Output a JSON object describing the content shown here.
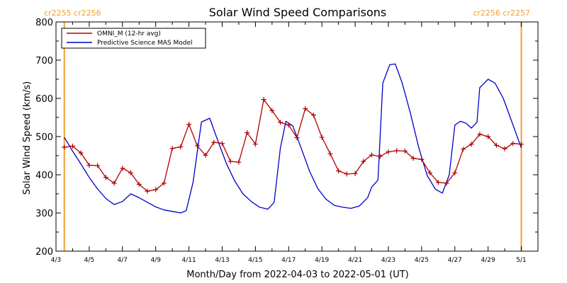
{
  "chart_data": {
    "type": "line",
    "title": "Solar Wind Speed Comparisons",
    "xlabel": "Month/Day from 2022-04-03 to 2022-05-01 (UT)",
    "ylabel": "Solar Wind Speed (km/s)",
    "ylim": [
      200,
      800
    ],
    "xlim": [
      "2022-04-03T00:00",
      "2022-05-02T00:00"
    ],
    "y_ticks": [
      200,
      300,
      400,
      500,
      600,
      700,
      800
    ],
    "x_ticks": [
      {
        "date": "2022-04-03",
        "label": "4/3"
      },
      {
        "date": "2022-04-05",
        "label": "4/5"
      },
      {
        "date": "2022-04-07",
        "label": "4/7"
      },
      {
        "date": "2022-04-09",
        "label": "4/9"
      },
      {
        "date": "2022-04-11",
        "label": "4/11"
      },
      {
        "date": "2022-04-13",
        "label": "4/13"
      },
      {
        "date": "2022-04-15",
        "label": "4/15"
      },
      {
        "date": "2022-04-17",
        "label": "4/17"
      },
      {
        "date": "2022-04-19",
        "label": "4/19"
      },
      {
        "date": "2022-04-21",
        "label": "4/21"
      },
      {
        "date": "2022-04-23",
        "label": "4/23"
      },
      {
        "date": "2022-04-25",
        "label": "4/25"
      },
      {
        "date": "2022-04-27",
        "label": "4/27"
      },
      {
        "date": "2022-04-29",
        "label": "4/29"
      },
      {
        "date": "2022-05-01",
        "label": "5/1"
      }
    ],
    "legend": {
      "placement": "top-left"
    },
    "series": [
      {
        "name": "OMNI_M (12-hr avg)",
        "color": "#b00000",
        "marker": "plus",
        "points": [
          [
            "2022-04-03T12:00",
            472
          ],
          [
            "2022-04-04T00:00",
            475
          ],
          [
            "2022-04-04T12:00",
            457
          ],
          [
            "2022-04-05T00:00",
            425
          ],
          [
            "2022-04-05T12:00",
            424
          ],
          [
            "2022-04-06T00:00",
            393
          ],
          [
            "2022-04-06T12:00",
            378
          ],
          [
            "2022-04-07T00:00",
            417
          ],
          [
            "2022-04-07T12:00",
            405
          ],
          [
            "2022-04-08T00:00",
            375
          ],
          [
            "2022-04-08T12:00",
            357
          ],
          [
            "2022-04-09T00:00",
            361
          ],
          [
            "2022-04-09T12:00",
            378
          ],
          [
            "2022-04-10T00:00",
            469
          ],
          [
            "2022-04-10T12:00",
            473
          ],
          [
            "2022-04-11T00:00",
            532
          ],
          [
            "2022-04-11T12:00",
            476
          ],
          [
            "2022-04-12T00:00",
            451
          ],
          [
            "2022-04-12T12:00",
            485
          ],
          [
            "2022-04-13T00:00",
            482
          ],
          [
            "2022-04-13T12:00",
            435
          ],
          [
            "2022-04-14T00:00",
            433
          ],
          [
            "2022-04-14T12:00",
            510
          ],
          [
            "2022-04-15T00:00",
            480
          ],
          [
            "2022-04-15T12:00",
            597
          ],
          [
            "2022-04-16T00:00",
            568
          ],
          [
            "2022-04-16T12:00",
            537
          ],
          [
            "2022-04-17T00:00",
            530
          ],
          [
            "2022-04-17T12:00",
            497
          ],
          [
            "2022-04-18T00:00",
            573
          ],
          [
            "2022-04-18T12:00",
            556
          ],
          [
            "2022-04-19T00:00",
            498
          ],
          [
            "2022-04-19T12:00",
            455
          ],
          [
            "2022-04-20T00:00",
            410
          ],
          [
            "2022-04-20T12:00",
            402
          ],
          [
            "2022-04-21T00:00",
            403
          ],
          [
            "2022-04-21T12:00",
            435
          ],
          [
            "2022-04-22T00:00",
            452
          ],
          [
            "2022-04-22T12:00",
            448
          ],
          [
            "2022-04-23T00:00",
            460
          ],
          [
            "2022-04-23T12:00",
            463
          ],
          [
            "2022-04-24T00:00",
            462
          ],
          [
            "2022-04-24T12:00",
            443
          ],
          [
            "2022-04-25T00:00",
            440
          ],
          [
            "2022-04-25T12:00",
            405
          ],
          [
            "2022-04-26T00:00",
            380
          ],
          [
            "2022-04-26T12:00",
            378
          ],
          [
            "2022-04-27T00:00",
            405
          ],
          [
            "2022-04-27T12:00",
            467
          ],
          [
            "2022-04-28T00:00",
            480
          ],
          [
            "2022-04-28T12:00",
            506
          ],
          [
            "2022-04-29T00:00",
            500
          ],
          [
            "2022-04-29T12:00",
            477
          ],
          [
            "2022-04-30T00:00",
            468
          ],
          [
            "2022-04-30T12:00",
            482
          ],
          [
            "2022-05-01T00:00",
            480
          ]
        ]
      },
      {
        "name": "Predictive Science MAS Model",
        "color": "#0000c8",
        "marker": "none",
        "points": [
          [
            "2022-04-03T12:00",
            498
          ],
          [
            "2022-04-04T00:00",
            462
          ],
          [
            "2022-04-04T12:00",
            428
          ],
          [
            "2022-04-05T00:00",
            393
          ],
          [
            "2022-04-05T12:00",
            363
          ],
          [
            "2022-04-06T00:00",
            338
          ],
          [
            "2022-04-06T12:00",
            322
          ],
          [
            "2022-04-07T00:00",
            330
          ],
          [
            "2022-04-07T12:00",
            350
          ],
          [
            "2022-04-08T00:00",
            340
          ],
          [
            "2022-04-08T12:00",
            328
          ],
          [
            "2022-04-09T00:00",
            316
          ],
          [
            "2022-04-09T12:00",
            308
          ],
          [
            "2022-04-10T00:00",
            304
          ],
          [
            "2022-04-10T12:00",
            300
          ],
          [
            "2022-04-10T20:00",
            306
          ],
          [
            "2022-04-11T06:00",
            380
          ],
          [
            "2022-04-11T18:00",
            538
          ],
          [
            "2022-04-12T06:00",
            548
          ],
          [
            "2022-04-12T18:00",
            488
          ],
          [
            "2022-04-13T06:00",
            430
          ],
          [
            "2022-04-13T18:00",
            384
          ],
          [
            "2022-04-14T06:00",
            350
          ],
          [
            "2022-04-14T18:00",
            330
          ],
          [
            "2022-04-15T06:00",
            315
          ],
          [
            "2022-04-15T18:00",
            310
          ],
          [
            "2022-04-16T03:00",
            328
          ],
          [
            "2022-04-16T12:00",
            470
          ],
          [
            "2022-04-16T20:00",
            540
          ],
          [
            "2022-04-17T06:00",
            528
          ],
          [
            "2022-04-17T18:00",
            470
          ],
          [
            "2022-04-18T06:00",
            410
          ],
          [
            "2022-04-18T18:00",
            364
          ],
          [
            "2022-04-19T06:00",
            336
          ],
          [
            "2022-04-19T18:00",
            320
          ],
          [
            "2022-04-20T06:00",
            315
          ],
          [
            "2022-04-20T18:00",
            312
          ],
          [
            "2022-04-21T06:00",
            318
          ],
          [
            "2022-04-21T18:00",
            340
          ],
          [
            "2022-04-22T00:00",
            368
          ],
          [
            "2022-04-22T09:00",
            386
          ],
          [
            "2022-04-22T16:00",
            640
          ],
          [
            "2022-04-23T02:00",
            688
          ],
          [
            "2022-04-23T10:00",
            690
          ],
          [
            "2022-04-23T20:00",
            640
          ],
          [
            "2022-04-24T08:00",
            560
          ],
          [
            "2022-04-24T20:00",
            470
          ],
          [
            "2022-04-25T08:00",
            398
          ],
          [
            "2022-04-25T20:00",
            362
          ],
          [
            "2022-04-26T06:00",
            352
          ],
          [
            "2022-04-26T16:00",
            400
          ],
          [
            "2022-04-27T00:00",
            530
          ],
          [
            "2022-04-27T08:00",
            540
          ],
          [
            "2022-04-27T16:00",
            535
          ],
          [
            "2022-04-28T00:00",
            522
          ],
          [
            "2022-04-28T08:00",
            538
          ],
          [
            "2022-04-28T12:00",
            628
          ],
          [
            "2022-04-29T00:00",
            650
          ],
          [
            "2022-04-29T10:00",
            640
          ],
          [
            "2022-04-29T22:00",
            600
          ],
          [
            "2022-04-30T10:00",
            540
          ],
          [
            "2022-04-30T22:00",
            480
          ],
          [
            "2022-05-01T00:00",
            470
          ]
        ]
      }
    ],
    "markers": [
      {
        "date": "2022-04-03T12:00",
        "labels": [
          "cr2255",
          "cr2256"
        ],
        "color": "#f0a030",
        "label_side": "left"
      },
      {
        "date": "2022-05-01T00:00",
        "labels": [
          "cr2256",
          "cr2257"
        ],
        "color": "#f0a030",
        "label_side": "right"
      }
    ]
  }
}
